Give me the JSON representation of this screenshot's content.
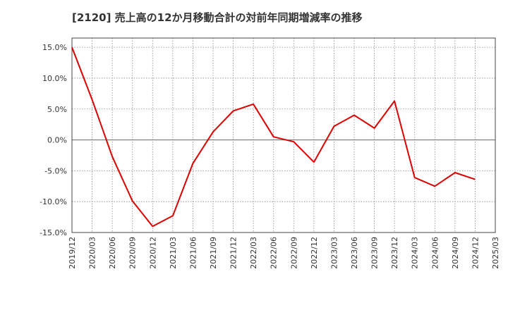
{
  "chart_data": {
    "type": "line",
    "title": "[2120]  売上高の12か月移動合計の対前年同期増減率の推移",
    "xlabel": "",
    "ylabel": "",
    "ylim": [
      -15,
      16.5
    ],
    "yticks": [
      15,
      10,
      5,
      0,
      -5,
      -10,
      -15
    ],
    "ytick_labels": [
      "15.0%",
      "10.0%",
      "5.0%",
      "0.0%",
      "-5.0%",
      "-10.0%",
      "-15.0%"
    ],
    "categories": [
      "2019/12",
      "2020/03",
      "2020/06",
      "2020/09",
      "2020/12",
      "2021/03",
      "2021/06",
      "2021/09",
      "2021/12",
      "2022/03",
      "2022/06",
      "2022/09",
      "2022/12",
      "2023/03",
      "2023/06",
      "2023/09",
      "2023/12",
      "2024/03",
      "2024/06",
      "2024/09",
      "2024/12",
      "2025/03"
    ],
    "grid": true,
    "legend": "none",
    "series": [
      {
        "name": "増減率",
        "color": "#dd0000",
        "values": [
          15.0,
          6.5,
          -2.7,
          -9.9,
          -14.0,
          -12.3,
          -3.8,
          1.3,
          4.7,
          5.8,
          0.5,
          -0.3,
          -3.6,
          2.2,
          4.0,
          1.9,
          6.3,
          -6.1,
          -7.5,
          -5.3,
          -6.4,
          null
        ]
      }
    ]
  }
}
